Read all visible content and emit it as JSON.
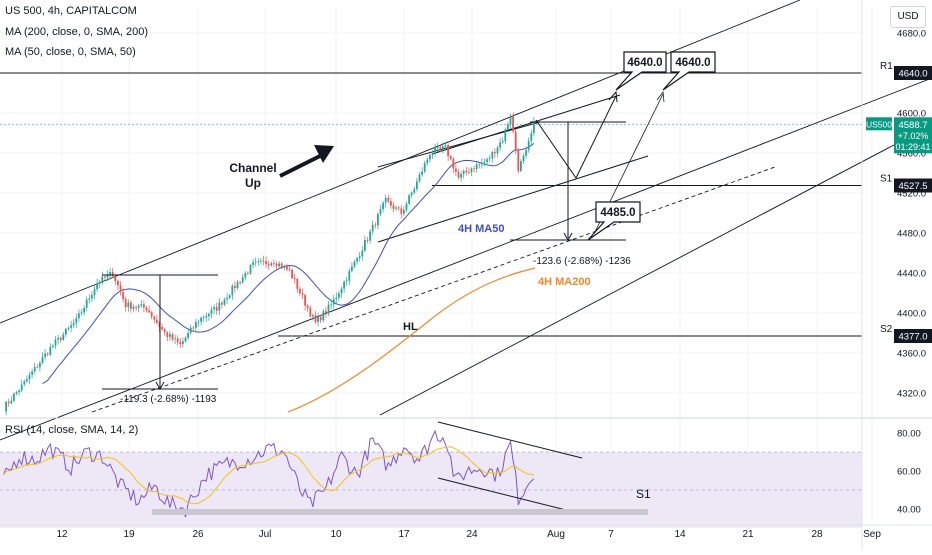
{
  "header": {
    "symbol": "US 500, 4h, CAPITALCOM",
    "ma200_legend": "MA (200, close, 0, SMA, 200)",
    "ma50_legend": "MA (50, close, 0, SMA, 50)",
    "currency": "USD"
  },
  "rsi_legend": "RSI (14, close, SMA, 14, 2)",
  "colors": {
    "up": "#26a69a",
    "down": "#ef5350",
    "ma50": "#3f51b5",
    "ma200": "#f5862b",
    "rsi": "#7e57c2",
    "rsi_ma": "#f0c419",
    "rsi_band": "#ede7f6",
    "last": "#089981"
  },
  "chart_data": {
    "type": "candlestick",
    "x_axis_labels": [
      "12",
      "19",
      "26",
      "Jul",
      "10",
      "17",
      "24",
      "Aug",
      "7",
      "14",
      "21",
      "28",
      "Sep"
    ],
    "y_ticks": [
      "4680.0",
      "4640.0",
      "4600.0",
      "4560.0",
      "4520.0",
      "4480.0",
      "4440.0",
      "4400.0",
      "4360.0",
      "4320.0"
    ],
    "y_range": [
      4298,
      4705
    ],
    "rsi_ticks": [
      "80.00",
      "60.00",
      "40.00"
    ],
    "rsi_range": [
      33,
      87
    ],
    "anchors": [
      {
        "b": 0,
        "p": 4305
      },
      {
        "b": 8,
        "p": 4330
      },
      {
        "b": 18,
        "p": 4365
      },
      {
        "b": 28,
        "p": 4392
      },
      {
        "b": 36,
        "p": 4430
      },
      {
        "b": 42,
        "p": 4440
      },
      {
        "b": 47,
        "p": 4408
      },
      {
        "b": 55,
        "p": 4405
      },
      {
        "b": 62,
        "p": 4380
      },
      {
        "b": 68,
        "p": 4368
      },
      {
        "b": 75,
        "p": 4393
      },
      {
        "b": 82,
        "p": 4405
      },
      {
        "b": 90,
        "p": 4430
      },
      {
        "b": 96,
        "p": 4448
      },
      {
        "b": 104,
        "p": 4452
      },
      {
        "b": 110,
        "p": 4442
      },
      {
        "b": 116,
        "p": 4410
      },
      {
        "b": 120,
        "p": 4390
      },
      {
        "b": 126,
        "p": 4408
      },
      {
        "b": 133,
        "p": 4440
      },
      {
        "b": 140,
        "p": 4475
      },
      {
        "b": 147,
        "p": 4512
      },
      {
        "b": 153,
        "p": 4500
      },
      {
        "b": 158,
        "p": 4525
      },
      {
        "b": 164,
        "p": 4560
      },
      {
        "b": 170,
        "p": 4565
      },
      {
        "b": 175,
        "p": 4535
      },
      {
        "b": 180,
        "p": 4545
      },
      {
        "b": 186,
        "p": 4552
      },
      {
        "b": 192,
        "p": 4574
      },
      {
        "b": 195,
        "p": 4598
      },
      {
        "b": 198,
        "p": 4545
      },
      {
        "b": 201,
        "p": 4560
      },
      {
        "b": 204,
        "p": 4588
      }
    ],
    "rsi_anchors": [
      {
        "b": 0,
        "v": 55
      },
      {
        "b": 6,
        "v": 68
      },
      {
        "b": 12,
        "v": 66
      },
      {
        "b": 18,
        "v": 72
      },
      {
        "b": 26,
        "v": 62
      },
      {
        "b": 32,
        "v": 70
      },
      {
        "b": 38,
        "v": 68
      },
      {
        "b": 45,
        "v": 52
      },
      {
        "b": 52,
        "v": 44
      },
      {
        "b": 58,
        "v": 52
      },
      {
        "b": 64,
        "v": 42
      },
      {
        "b": 70,
        "v": 40
      },
      {
        "b": 78,
        "v": 58
      },
      {
        "b": 86,
        "v": 64
      },
      {
        "b": 94,
        "v": 66
      },
      {
        "b": 102,
        "v": 72
      },
      {
        "b": 108,
        "v": 70
      },
      {
        "b": 114,
        "v": 50
      },
      {
        "b": 118,
        "v": 42
      },
      {
        "b": 124,
        "v": 50
      },
      {
        "b": 130,
        "v": 68
      },
      {
        "b": 136,
        "v": 58
      },
      {
        "b": 142,
        "v": 76
      },
      {
        "b": 148,
        "v": 62
      },
      {
        "b": 154,
        "v": 74
      },
      {
        "b": 160,
        "v": 66
      },
      {
        "b": 166,
        "v": 80
      },
      {
        "b": 170,
        "v": 78
      },
      {
        "b": 174,
        "v": 54
      },
      {
        "b": 178,
        "v": 60
      },
      {
        "b": 184,
        "v": 62
      },
      {
        "b": 190,
        "v": 58
      },
      {
        "b": 195,
        "v": 74
      },
      {
        "b": 198,
        "v": 46
      },
      {
        "b": 201,
        "v": 52
      },
      {
        "b": 204,
        "v": 60
      }
    ],
    "price_labels": [
      {
        "value": 4640,
        "text": "4640.0"
      },
      {
        "value": 4527.5,
        "text": "4527.5"
      },
      {
        "value": 4377,
        "text": "4377.0"
      }
    ],
    "last_price": {
      "value": 4588.7,
      "symbol": "US500",
      "price": "4588.7",
      "change": "+7.02%",
      "countdown": "01:29:41"
    },
    "levels": [
      {
        "name": "R1",
        "value": 4640
      },
      {
        "name": "S1",
        "value": 4527.5
      },
      {
        "name": "S2",
        "value": 4377
      }
    ],
    "annotations": {
      "channel_label": [
        "Channel",
        "Up"
      ],
      "hl": "HL",
      "ma50_label": "4H MA50",
      "ma200_label": "4H MA200",
      "measure_left": "-119.3 (-2.68%) -1193",
      "measure_right": "-123.6 (-2.68%) -1236",
      "target_1": "4640.0",
      "target_2": "4640.0",
      "target_low": "4485.0",
      "rsi_s1": "S1"
    }
  }
}
